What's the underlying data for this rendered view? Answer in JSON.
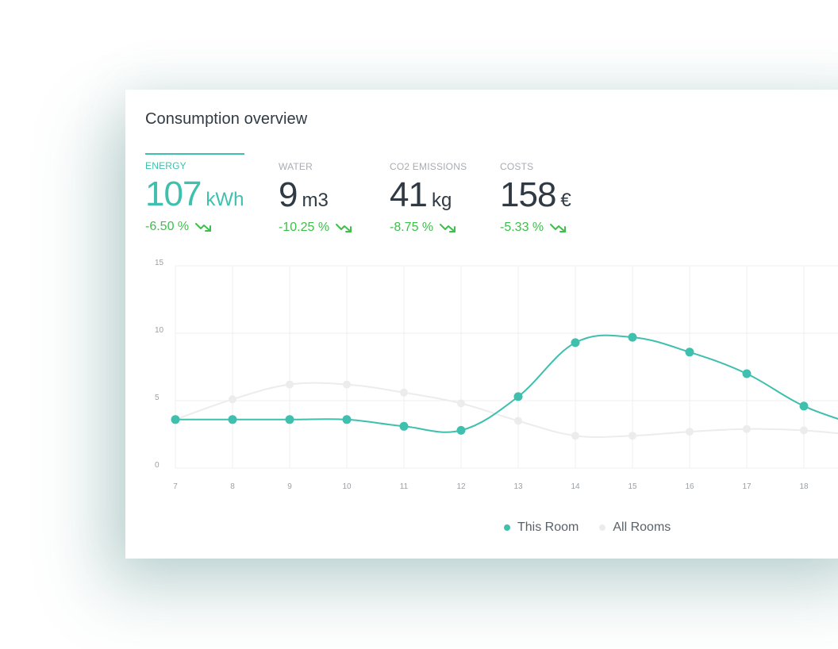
{
  "card": {
    "title": "Consumption overview"
  },
  "tabs": [
    {
      "label": "ENERGY",
      "value": "107",
      "unit": "kWh",
      "change": "-6.50 %",
      "active": true
    },
    {
      "label": "WATER",
      "value": "9",
      "unit": "m3",
      "change": "-10.25 %",
      "active": false
    },
    {
      "label": "CO2 EMISSIONS",
      "value": "41",
      "unit": "kg",
      "change": "-8.75 %",
      "active": false
    },
    {
      "label": "COSTS",
      "value": "158",
      "unit": "€",
      "change": "-5.33 %",
      "active": false
    }
  ],
  "colors": {
    "accent": "#3fbfad",
    "secondary_series": "#e8e8e8",
    "positive_change": "#3cc04a",
    "text": "#2f3a44"
  },
  "icons": {
    "trend": "trending-down-icon"
  },
  "chart_data": {
    "type": "line",
    "x": [
      7,
      8,
      9,
      10,
      11,
      12,
      13,
      14,
      15,
      16,
      17,
      18
    ],
    "series": [
      {
        "name": "This Room",
        "color": "#3fbfad",
        "values": [
          3.6,
          3.6,
          3.6,
          3.6,
          3.1,
          2.8,
          5.3,
          9.3,
          9.7,
          8.6,
          7.0,
          4.6
        ]
      },
      {
        "name": "All Rooms",
        "color": "#e8e8e8",
        "values": [
          3.6,
          5.1,
          6.2,
          6.2,
          5.6,
          4.8,
          3.5,
          2.4,
          2.4,
          2.7,
          2.9,
          2.8
        ]
      }
    ],
    "ylim": [
      0,
      15
    ],
    "yticks": [
      0,
      5,
      10,
      15
    ],
    "grid": true,
    "legend": "bottom"
  }
}
